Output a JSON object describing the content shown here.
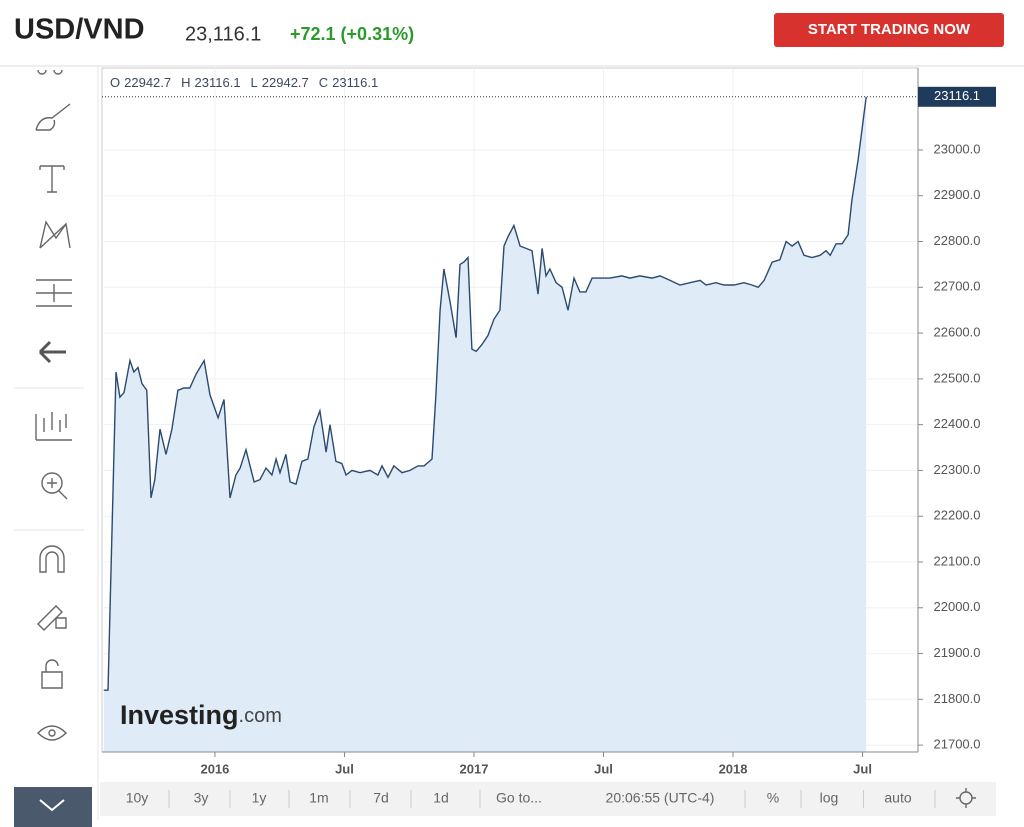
{
  "header": {
    "symbol": "USD/VND",
    "price": "23,116.1",
    "change": "+72.1 (+0.31%)",
    "button": "START TRADING NOW"
  },
  "ohlc": [
    {
      "label": "O",
      "value": 22942.7
    },
    {
      "label": "H",
      "value": 23116.1
    },
    {
      "label": "L",
      "value": 22942.7
    },
    {
      "label": "C",
      "value": 23116.1
    }
  ],
  "watermark": {
    "brand": "Investing",
    "suffix": ".com"
  },
  "chart_data": {
    "type": "area",
    "color": "#2b4a6e",
    "fill": "#dde9f7",
    "x": [
      2015.571,
      2015.587,
      2015.618,
      2015.633,
      2015.649,
      2015.672,
      2015.687,
      2015.703,
      2015.718,
      2015.737,
      2015.753,
      2015.768,
      2015.788,
      2015.811,
      2015.834,
      2015.857,
      2015.88,
      2015.903,
      2015.927,
      2015.958,
      2015.981,
      2016.012,
      2016.035,
      2016.058,
      2016.081,
      2016.097,
      2016.12,
      2016.151,
      2016.174,
      2016.197,
      2016.22,
      2016.236,
      2016.251,
      2016.274,
      2016.29,
      2016.313,
      2016.336,
      2016.359,
      2016.382,
      2016.405,
      2016.429,
      2016.444,
      2016.467,
      2016.49,
      2016.506,
      2016.529,
      2016.56,
      2016.598,
      2016.629,
      2016.645,
      2016.668,
      2016.691,
      2016.722,
      2016.753,
      2016.784,
      2016.807,
      2016.838,
      2016.853,
      2016.869,
      2016.884,
      2016.907,
      2016.931,
      2016.946,
      2016.961,
      2016.977,
      2016.992,
      2017.008,
      2017.031,
      2017.054,
      2017.077,
      2017.1,
      2017.116,
      2017.131,
      2017.154,
      2017.178,
      2017.201,
      2017.224,
      2017.247,
      2017.263,
      2017.278,
      2017.293,
      2017.317,
      2017.34,
      2017.363,
      2017.386,
      2017.409,
      2017.432,
      2017.456,
      2017.486,
      2017.525,
      2017.571,
      2017.602,
      2017.641,
      2017.687,
      2017.718,
      2017.757,
      2017.795,
      2017.834,
      2017.873,
      2017.896,
      2017.934,
      2017.965,
      2018.004,
      2018.042,
      2018.073,
      2018.097,
      2018.12,
      2018.151,
      2018.181,
      2018.205,
      2018.228,
      2018.251,
      2018.274,
      2018.305,
      2018.336,
      2018.359,
      2018.375,
      2018.398,
      2018.421,
      2018.444,
      2018.459,
      2018.483,
      2018.514
    ],
    "values": [
      21820,
      21820,
      22515,
      22460,
      22470,
      22540,
      22515,
      22525,
      22490,
      22475,
      22240,
      22280,
      22390,
      22335,
      22390,
      22475,
      22480,
      22480,
      22510,
      22540,
      22465,
      22415,
      22455,
      22240,
      22290,
      22305,
      22345,
      22275,
      22280,
      22305,
      22290,
      22325,
      22295,
      22335,
      22275,
      22270,
      22320,
      22325,
      22395,
      22430,
      22340,
      22400,
      22320,
      22315,
      22290,
      22300,
      22295,
      22300,
      22290,
      22310,
      22285,
      22310,
      22295,
      22300,
      22310,
      22310,
      22325,
      22465,
      22650,
      22740,
      22670,
      22590,
      22750,
      22755,
      22765,
      22565,
      22560,
      22575,
      22595,
      22630,
      22650,
      22790,
      22810,
      22835,
      22790,
      22785,
      22780,
      22685,
      22785,
      22725,
      22740,
      22710,
      22700,
      22650,
      22720,
      22690,
      22690,
      22720,
      22720,
      22720,
      22725,
      22720,
      22725,
      22720,
      22725,
      22715,
      22705,
      22710,
      22715,
      22705,
      22710,
      22705,
      22705,
      22710,
      22705,
      22700,
      22715,
      22755,
      22760,
      22800,
      22790,
      22800,
      22770,
      22765,
      22770,
      22780,
      22770,
      22795,
      22795,
      22815,
      22890,
      22980,
      23116.1
    ],
    "xlim": [
      2015.564,
      2018.714
    ],
    "xticks": [
      {
        "value": 2016,
        "label": "2016"
      },
      {
        "value": 2016.5,
        "label": "Jul"
      },
      {
        "value": 2017,
        "label": "2017"
      },
      {
        "value": 2017.5,
        "label": "Jul"
      },
      {
        "value": 2018,
        "label": "2018"
      },
      {
        "value": 2018.5,
        "label": "Jul"
      }
    ],
    "ylim": [
      21685,
      23179
    ],
    "yticks": [
      {
        "value": 21700,
        "label": "21700.0"
      },
      {
        "value": 21800,
        "label": "21800.0"
      },
      {
        "value": 21900,
        "label": "21900.0"
      },
      {
        "value": 22000,
        "label": "22000.0"
      },
      {
        "value": 22100,
        "label": "22100.0"
      },
      {
        "value": 22200,
        "label": "22200.0"
      },
      {
        "value": 22300,
        "label": "22300.0"
      },
      {
        "value": 22400,
        "label": "22400.0"
      },
      {
        "value": 22500,
        "label": "22500.0"
      },
      {
        "value": 22600,
        "label": "22600.0"
      },
      {
        "value": 22700,
        "label": "22700.0"
      },
      {
        "value": 22800,
        "label": "22800.0"
      },
      {
        "value": 22900,
        "label": "22900.0"
      },
      {
        "value": 23000,
        "label": "23000.0"
      }
    ],
    "grid": true
  },
  "toolbar": [
    "10y",
    "3y",
    "1y",
    "1m",
    "7d",
    "1d",
    "Go to...",
    "20:06:55 (UTC-4)",
    "%",
    "log",
    "auto"
  ]
}
